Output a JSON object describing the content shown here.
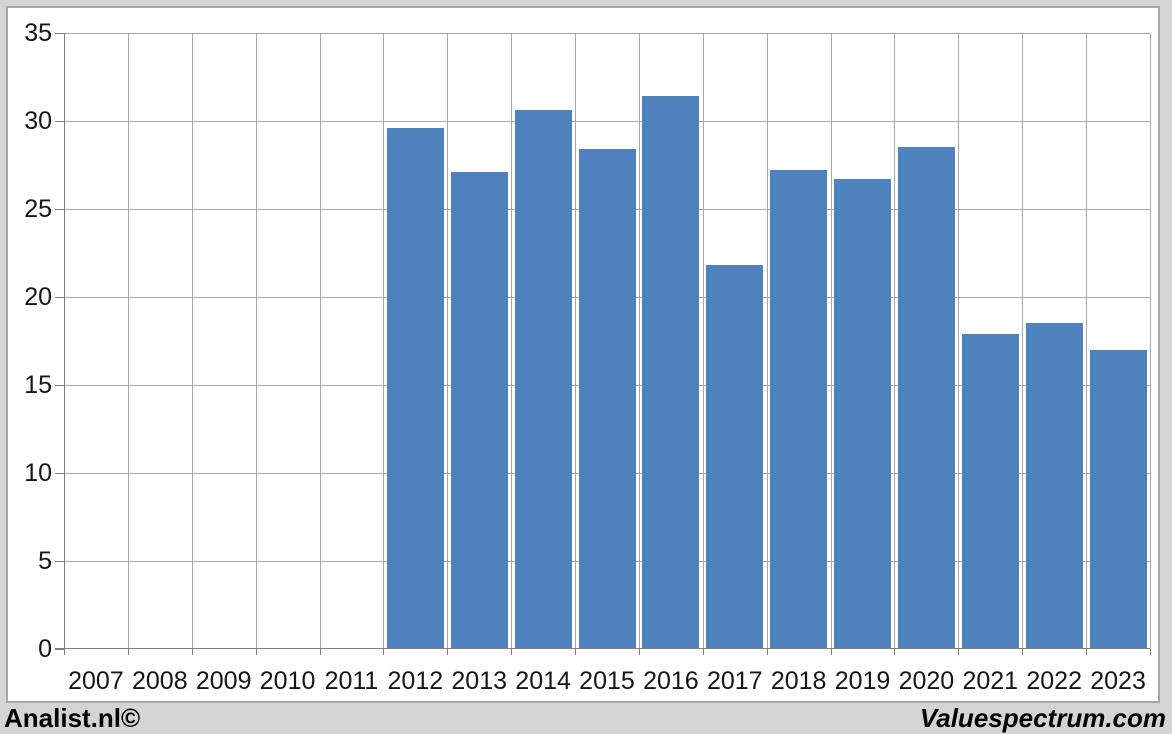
{
  "chart_data": {
    "type": "bar",
    "categories": [
      "2007",
      "2008",
      "2009",
      "2010",
      "2011",
      "2012",
      "2013",
      "2014",
      "2015",
      "2016",
      "2017",
      "2018",
      "2019",
      "2020",
      "2021",
      "2022",
      "2023"
    ],
    "values": [
      null,
      null,
      null,
      null,
      null,
      29.6,
      27.1,
      30.6,
      28.4,
      31.4,
      21.8,
      27.2,
      26.7,
      28.5,
      17.9,
      18.5,
      17.0
    ],
    "title": "",
    "xlabel": "",
    "ylabel": "",
    "ylim": [
      0,
      35
    ],
    "yticks": [
      0,
      5,
      10,
      15,
      20,
      25,
      30,
      35
    ],
    "grid": "both",
    "legend": "none",
    "bar_color": "#4f81bd",
    "gridline_color": "#a6a6a6",
    "axis_color": "#7f7f7f",
    "plot_background": "#ffffff",
    "frame_background": "#d4d4d4"
  },
  "footer": {
    "left": "Analist.nl©",
    "right": "Valuespectrum.com"
  }
}
